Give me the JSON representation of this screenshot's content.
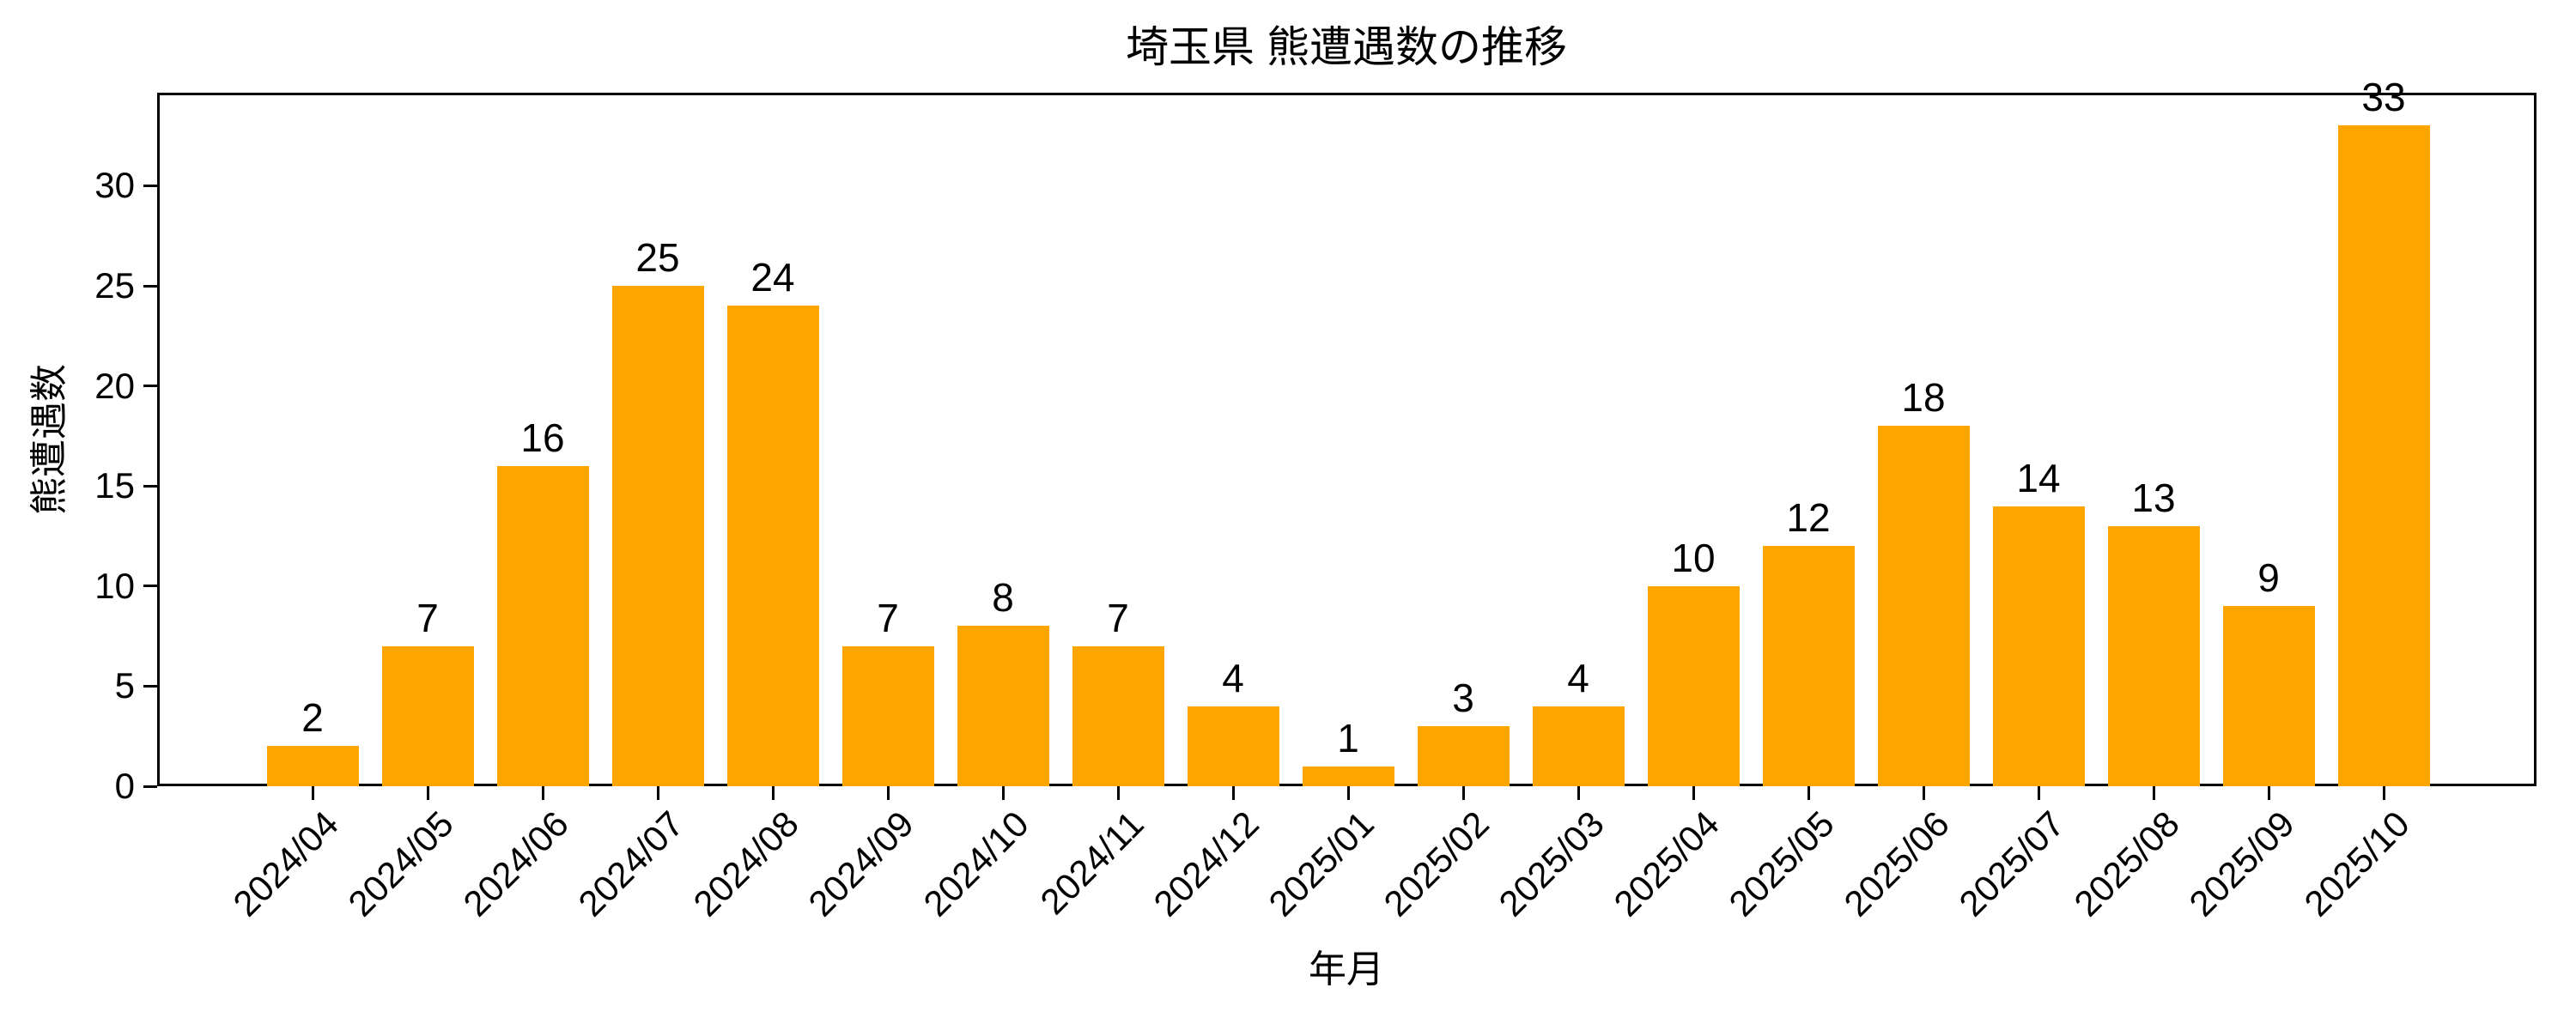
{
  "figure": {
    "title": "埼玉県 熊遭遇数の推移",
    "xlabel": "年月",
    "ylabel": "熊遭遇数"
  },
  "chart_data": {
    "type": "bar",
    "title": "埼玉県 熊遭遇数の推移",
    "xlabel": "年月",
    "ylabel": "熊遭遇数",
    "categories": [
      "2024/04",
      "2024/05",
      "2024/06",
      "2024/07",
      "2024/08",
      "2024/09",
      "2024/10",
      "2024/11",
      "2024/12",
      "2025/01",
      "2025/02",
      "2025/03",
      "2025/04",
      "2025/05",
      "2025/06",
      "2025/07",
      "2025/08",
      "2025/09",
      "2025/10"
    ],
    "values": [
      2,
      7,
      16,
      25,
      24,
      7,
      8,
      7,
      4,
      1,
      3,
      4,
      10,
      12,
      18,
      14,
      13,
      9,
      33
    ],
    "value_labels": true,
    "yticks": [
      0,
      5,
      10,
      15,
      20,
      25,
      30
    ],
    "ylim": [
      0,
      34.65
    ],
    "x_tick_rotation_deg": 45,
    "grid": false,
    "legend": false,
    "bar_color": "#FFA500",
    "text_color": "#000000",
    "background_color": "#FFFFFF"
  }
}
